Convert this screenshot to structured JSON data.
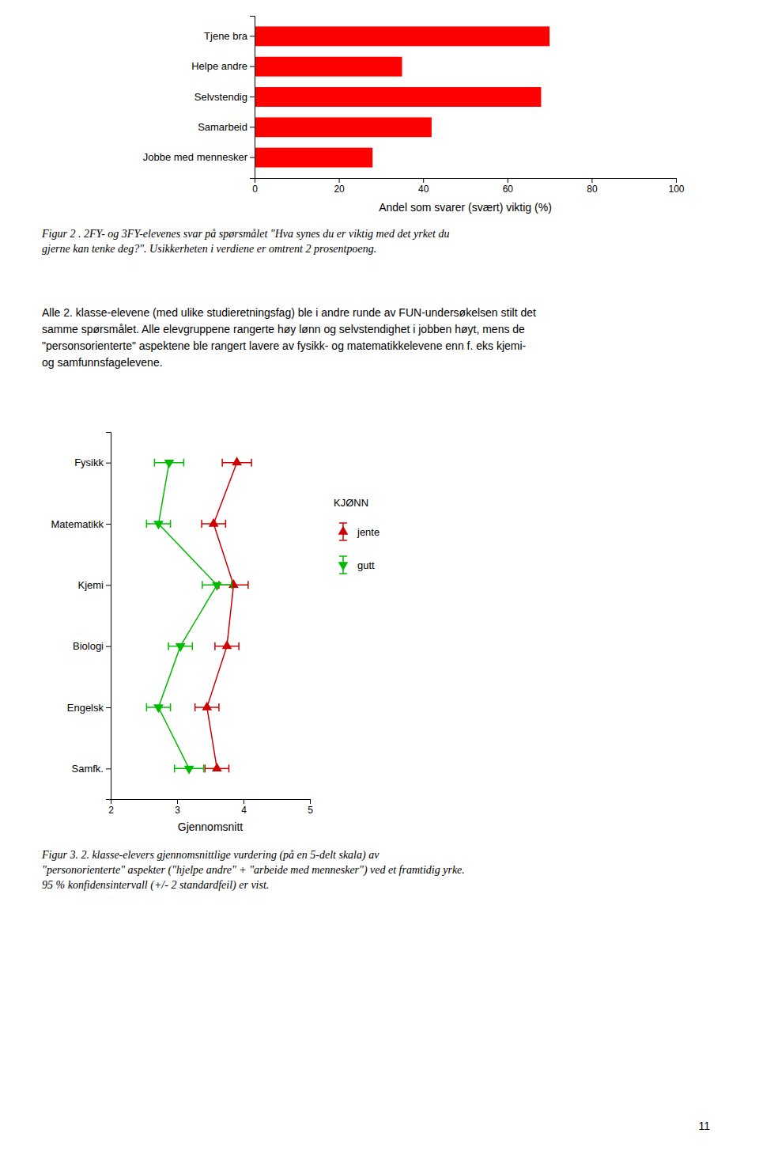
{
  "chart_data": [
    {
      "type": "bar",
      "orientation": "horizontal",
      "categories": [
        "Tjene bra",
        "Helpe andre",
        "Selvstendig",
        "Samarbeid",
        "Jobbe med mennesker"
      ],
      "values": [
        70,
        35,
        68,
        42,
        28
      ],
      "color": "#ff0000",
      "xlabel": "Andel som svarer (svært) viktig (%)",
      "xlim": [
        0,
        100
      ],
      "xticks": [
        0,
        20,
        40,
        60,
        80,
        100
      ],
      "annotations": [
        "Figur 2 . 2FY- og 3FY-elevenes svar på spørsmålet \"Hva synes du er viktig med det yrket du",
        "gjerne kan tenke deg?\". Usikkerheten i verdiene er omtrent 2 prosentpoeng.",
        "Alle 2. klasse-elevene (med ulike studieretningsfag) ble i andre runde av FUN-undersøkelsen stilt det",
        "samme spørsmålet. Alle elevgruppene rangerte høy lønn og selvstendighet i jobben høyt, mens de",
        "\"personsorienterte\" aspektene ble rangert lavere av fysikk- og matematikkelevene enn f. eks kjemi-",
        "og samfunnsfagelevene."
      ]
    },
    {
      "type": "line",
      "orientation": "horizontal",
      "categories": [
        "Fysikk",
        "Matematikk",
        "Kjemi",
        "Biologi",
        "Engelsk",
        "Samfk."
      ],
      "series": [
        {
          "name": "jente",
          "color": "#cc0000",
          "marker": "triangle-up",
          "values": [
            3.9,
            3.55,
            3.85,
            3.75,
            3.45,
            3.6
          ],
          "errors": [
            0.22,
            0.18,
            0.22,
            0.18,
            0.18,
            0.18
          ]
        },
        {
          "name": "gutt",
          "color": "#00bb00",
          "marker": "triangle-down",
          "values": [
            2.88,
            2.72,
            3.6,
            3.05,
            2.72,
            3.18
          ],
          "errors": [
            0.22,
            0.18,
            0.22,
            0.18,
            0.18,
            0.22
          ]
        }
      ],
      "xlabel": "Gjennomsnitt",
      "xlim": [
        2,
        5
      ],
      "xticks": [
        2,
        3,
        4,
        5
      ],
      "legend": "right",
      "legend_title": "KJØNN",
      "annotations": [
        "Figur 3. 2. klasse-elevers gjennomsnittlige vurdering (på en 5-delt skala) av",
        "\"personorienterte\" aspekter (\"hjelpe andre\" + \"arbeide med mennesker\") ved et framtidig yrke.",
        "95 % konfidensintervall (+/- 2 standardfeil) er vist."
      ]
    }
  ],
  "page_number": "11"
}
